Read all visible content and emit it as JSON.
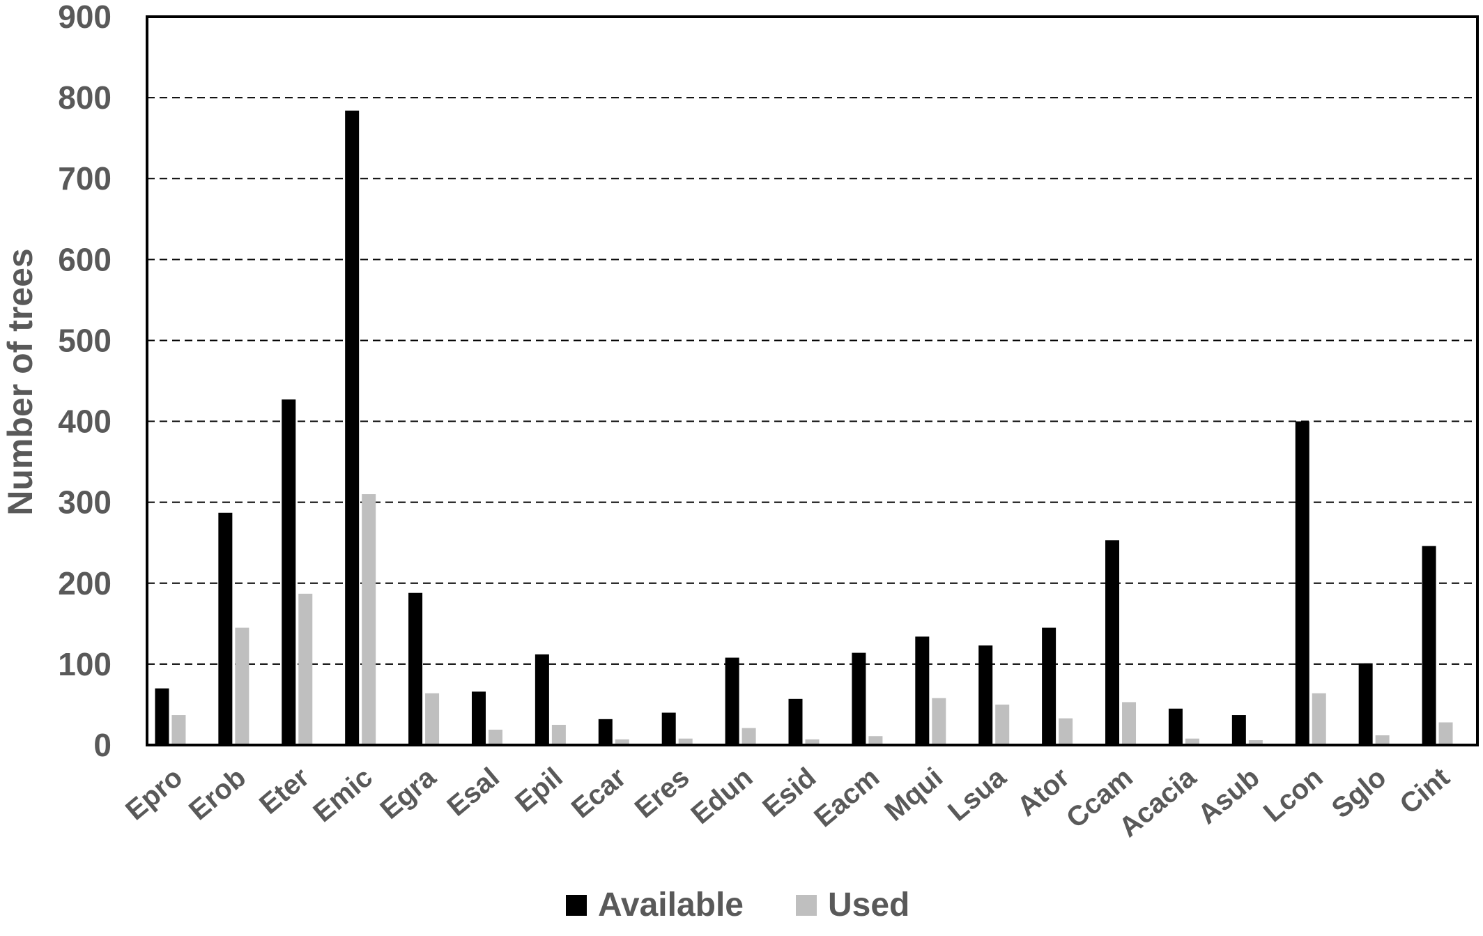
{
  "chart_data": {
    "type": "bar",
    "title": "",
    "xlabel": "",
    "ylabel": "Number of trees",
    "ylim": [
      0,
      900
    ],
    "yticks": [
      0,
      100,
      200,
      300,
      400,
      500,
      600,
      700,
      800,
      900
    ],
    "grid": "horizontal dashed",
    "legend_position": "bottom",
    "categories": [
      "Epro",
      "Erob",
      "Eter",
      "Emic",
      "Egra",
      "Esal",
      "Epil",
      "Ecar",
      "Eres",
      "Edun",
      "Esid",
      "Eacm",
      "Mqui",
      "Lsua",
      "Ator",
      "Ccam",
      "Acacia",
      "Asub",
      "Lcon",
      "Sglo",
      "Cint"
    ],
    "series": [
      {
        "name": "Available",
        "color": "#000000",
        "values": [
          70,
          287,
          427,
          784,
          188,
          66,
          112,
          32,
          40,
          108,
          57,
          114,
          134,
          123,
          145,
          253,
          45,
          37,
          400,
          101,
          246
        ]
      },
      {
        "name": "Used",
        "color": "#bfbfbf",
        "values": [
          37,
          145,
          187,
          310,
          64,
          19,
          25,
          7,
          8,
          21,
          7,
          11,
          58,
          50,
          33,
          53,
          8,
          6,
          64,
          12,
          28
        ]
      }
    ]
  }
}
